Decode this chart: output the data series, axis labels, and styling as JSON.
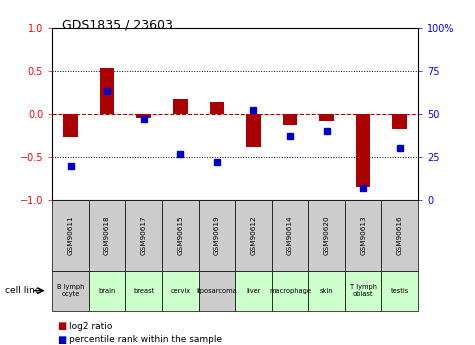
{
  "title": "GDS1835 / 23603",
  "gsm_labels": [
    "GSM90611",
    "GSM90618",
    "GSM90617",
    "GSM90615",
    "GSM90619",
    "GSM90612",
    "GSM90614",
    "GSM90620",
    "GSM90613",
    "GSM90616"
  ],
  "cell_labels": [
    "B lymph\nocyte",
    "brain",
    "breast",
    "cervix",
    "liposarcoma",
    "liver",
    "macrophage",
    "skin",
    "T lymph\noblast",
    "testis"
  ],
  "cell_bg_colors": [
    "#cccccc",
    "#ccffcc",
    "#ccffcc",
    "#ccffcc",
    "#cccccc",
    "#ccffcc",
    "#ccffcc",
    "#ccffcc",
    "#ccffcc",
    "#ccffcc"
  ],
  "gsm_bg_color": "#cccccc",
  "log2_ratio": [
    -0.27,
    0.53,
    -0.05,
    0.17,
    0.14,
    -0.38,
    -0.13,
    -0.08,
    -0.85,
    -0.18
  ],
  "pct_rank_scaled": [
    20,
    63,
    47,
    27,
    22,
    52,
    37,
    40,
    7,
    30
  ],
  "bar_color": "#aa0000",
  "dot_color": "#0000cc",
  "ylim_left": [
    -1,
    1
  ],
  "yticks_left": [
    -1,
    -0.5,
    0,
    0.5,
    1
  ],
  "yticks_right": [
    0,
    25,
    50,
    75,
    100
  ],
  "dotted_lines": [
    -0.5,
    0.5
  ],
  "legend_log2": "log2 ratio",
  "legend_pct": "percentile rank within the sample"
}
